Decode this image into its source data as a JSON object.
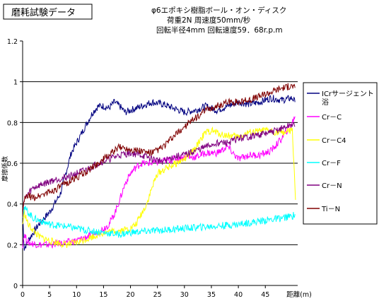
{
  "chart_data": {
    "type": "line",
    "title_box": "磨耗試験データ",
    "subtitle_lines": [
      "φ6エポキシ樹脂ボール・オン・ディスク",
      "荷重2N  周速度50mm/秒",
      "回転半径4mm  回転速度59．68r.p.m"
    ],
    "ylabel": "摩擦係数",
    "xlabel": "距離(m)",
    "xlim": [
      0,
      51
    ],
    "ylim": [
      0,
      1.2
    ],
    "x_ticks": [
      0,
      5,
      10,
      15,
      20,
      25,
      30,
      35,
      40,
      45
    ],
    "y_ticks": [
      0,
      0.2,
      0.4,
      0.6,
      0.8,
      1,
      1.2
    ],
    "x_tick_labels": [
      "0",
      "5",
      "10",
      "15",
      "20",
      "25",
      "30",
      "35",
      "40",
      "45"
    ],
    "y_tick_labels": [
      "0",
      "0.2",
      "0.4",
      "0.6",
      "0.8",
      "1",
      "1.2"
    ],
    "grid": "horizontal",
    "legend_position": "right",
    "series": [
      {
        "name": "ICrサージェント浴",
        "color": "#000080",
        "x": [
          0,
          0.3,
          1,
          3,
          5,
          7,
          8,
          9,
          10,
          11,
          12,
          13,
          14,
          15,
          16,
          17,
          18,
          19,
          20,
          22,
          24,
          26,
          28,
          30,
          32,
          34,
          36,
          38,
          40,
          42,
          44,
          46,
          48,
          50,
          50.5
        ],
        "y": [
          0.35,
          0.18,
          0.22,
          0.3,
          0.36,
          0.45,
          0.55,
          0.65,
          0.7,
          0.75,
          0.8,
          0.85,
          0.88,
          0.88,
          0.87,
          0.9,
          0.88,
          0.85,
          0.86,
          0.88,
          0.9,
          0.89,
          0.87,
          0.85,
          0.86,
          0.88,
          0.86,
          0.88,
          0.9,
          0.89,
          0.9,
          0.92,
          0.91,
          0.92,
          0.9
        ]
      },
      {
        "name": "Cr－C",
        "color": "#ff00ff",
        "x": [
          0,
          0.3,
          1,
          3,
          5,
          8,
          10,
          12,
          14,
          15,
          16,
          17,
          18,
          19,
          20,
          21,
          22,
          23,
          24,
          26,
          28,
          30,
          32,
          34,
          36,
          38,
          40,
          42,
          44,
          46,
          48,
          50,
          50.5
        ],
        "y": [
          0.2,
          0.25,
          0.21,
          0.2,
          0.2,
          0.21,
          0.22,
          0.24,
          0.26,
          0.28,
          0.3,
          0.35,
          0.42,
          0.5,
          0.55,
          0.58,
          0.6,
          0.6,
          0.6,
          0.61,
          0.62,
          0.63,
          0.63,
          0.65,
          0.65,
          0.68,
          0.62,
          0.64,
          0.64,
          0.66,
          0.72,
          0.8,
          0.83
        ]
      },
      {
        "name": "Cr－C4",
        "color": "#ffff00",
        "x": [
          0,
          0.3,
          1,
          2,
          3,
          5,
          8,
          10,
          12,
          15,
          18,
          20,
          21,
          22,
          23,
          24,
          25,
          27,
          30,
          32,
          33,
          34,
          35,
          37,
          40,
          42,
          45,
          48,
          50,
          50.3,
          50.6
        ],
        "y": [
          0.3,
          0.36,
          0.3,
          0.27,
          0.24,
          0.22,
          0.2,
          0.21,
          0.23,
          0.26,
          0.27,
          0.28,
          0.3,
          0.35,
          0.4,
          0.48,
          0.55,
          0.58,
          0.62,
          0.67,
          0.72,
          0.75,
          0.76,
          0.74,
          0.73,
          0.75,
          0.76,
          0.75,
          0.76,
          0.6,
          0.42
        ]
      },
      {
        "name": "Cr－F",
        "color": "#00ffff",
        "x": [
          0,
          0.3,
          1,
          2,
          3,
          5,
          8,
          10,
          12,
          15,
          18,
          20,
          25,
          30,
          35,
          40,
          45,
          48,
          50,
          50.5
        ],
        "y": [
          0.35,
          0.38,
          0.36,
          0.33,
          0.32,
          0.3,
          0.29,
          0.28,
          0.27,
          0.26,
          0.25,
          0.26,
          0.27,
          0.28,
          0.29,
          0.3,
          0.32,
          0.33,
          0.34,
          0.35
        ]
      },
      {
        "name": "Cr－N",
        "color": "#800080",
        "x": [
          0,
          0.3,
          1,
          2,
          4,
          6,
          8,
          10,
          12,
          14,
          16,
          18,
          20,
          22,
          24,
          26,
          28,
          30,
          32,
          34,
          36,
          38,
          40,
          42,
          44,
          46,
          48,
          50,
          50.5
        ],
        "y": [
          0.38,
          0.42,
          0.45,
          0.48,
          0.5,
          0.52,
          0.53,
          0.55,
          0.57,
          0.6,
          0.62,
          0.64,
          0.65,
          0.64,
          0.62,
          0.61,
          0.63,
          0.64,
          0.66,
          0.68,
          0.7,
          0.7,
          0.72,
          0.73,
          0.74,
          0.75,
          0.77,
          0.79,
          0.78
        ]
      },
      {
        "name": "Ti－N",
        "color": "#800000",
        "x": [
          0,
          0.3,
          1,
          2,
          4,
          6,
          8,
          10,
          12,
          14,
          16,
          18,
          20,
          22,
          24,
          26,
          28,
          30,
          32,
          34,
          36,
          38,
          40,
          42,
          44,
          46,
          48,
          50,
          50.5
        ],
        "y": [
          0.35,
          0.42,
          0.44,
          0.43,
          0.45,
          0.47,
          0.5,
          0.53,
          0.56,
          0.6,
          0.64,
          0.68,
          0.67,
          0.66,
          0.65,
          0.68,
          0.73,
          0.78,
          0.82,
          0.86,
          0.88,
          0.9,
          0.9,
          0.91,
          0.93,
          0.95,
          0.97,
          0.98,
          0.97
        ]
      }
    ]
  }
}
